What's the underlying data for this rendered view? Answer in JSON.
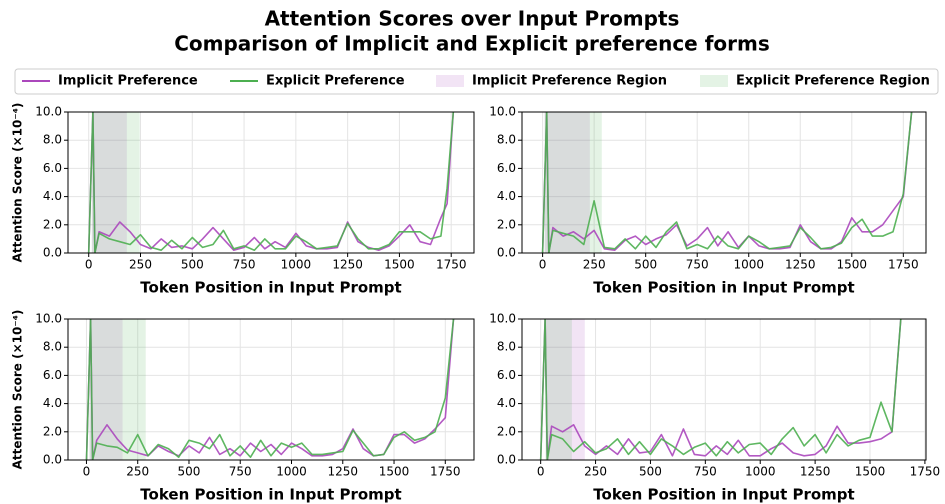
{
  "title": "Attention Scores over Input Prompts",
  "subtitle": "Comparison of Implicit and Explicit preference forms",
  "chart_data": [
    {
      "type": "line",
      "xlabel": "Token Position in Input Prompt",
      "ylabel": "Attention Score (×10⁻⁴)",
      "x": [
        0,
        20,
        30,
        50,
        100,
        150,
        200,
        250,
        300,
        350,
        400,
        450,
        500,
        550,
        600,
        650,
        700,
        750,
        800,
        850,
        900,
        950,
        1000,
        1050,
        1100,
        1150,
        1200,
        1250,
        1300,
        1350,
        1400,
        1450,
        1500,
        1550,
        1600,
        1650,
        1700,
        1730,
        1760
      ],
      "series": [
        {
          "name": "Implicit Preference",
          "color": "#ab47bc",
          "values": [
            0,
            10,
            0,
            1.5,
            1.2,
            2.2,
            1.5,
            0.6,
            0.3,
            1.0,
            0.4,
            0.5,
            0.3,
            1.0,
            1.8,
            1.0,
            0.2,
            0.4,
            1.1,
            0.3,
            0.8,
            0.4,
            1.4,
            0.5,
            0.3,
            0.3,
            0.4,
            2.2,
            0.8,
            0.4,
            0.2,
            0.5,
            1.2,
            2.0,
            0.8,
            0.6,
            2.5,
            3.5,
            10
          ]
        },
        {
          "name": "Explicit Preference",
          "color": "#4caf50",
          "values": [
            0,
            10,
            0,
            1.4,
            1.0,
            0.8,
            0.6,
            1.3,
            0.4,
            0.2,
            0.9,
            0.3,
            1.1,
            0.4,
            0.6,
            1.6,
            0.3,
            0.5,
            0.2,
            1.0,
            0.3,
            0.3,
            1.2,
            0.8,
            0.3,
            0.4,
            0.5,
            2.1,
            1.0,
            0.3,
            0.3,
            0.6,
            1.5,
            1.5,
            1.5,
            1.0,
            1.2,
            4.6,
            10
          ]
        }
      ],
      "regions": [
        {
          "name": "Implicit Preference Region",
          "color": "#ab47bc",
          "range": [
            15,
            184
          ]
        },
        {
          "name": "Explicit Preference Region",
          "color": "#4caf50",
          "range": [
            15,
            246
          ]
        }
      ],
      "xlim": [
        -100,
        1860
      ],
      "xticks": [
        0,
        250,
        500,
        750,
        1000,
        1250,
        1500,
        1750
      ],
      "ylim": [
        0,
        10
      ],
      "yticks": [
        {
          "value": 0,
          "label": "0.0"
        },
        {
          "value": 2,
          "label": "2.0"
        },
        {
          "value": 4,
          "label": "4.0"
        },
        {
          "value": 6,
          "label": "6.0"
        },
        {
          "value": 8,
          "label": "8.0"
        },
        {
          "value": 10,
          "label": "10.0"
        }
      ],
      "grid": true
    },
    {
      "type": "line",
      "xlabel": "Token Position in Input Prompt",
      "x": [
        0,
        20,
        30,
        50,
        100,
        150,
        200,
        250,
        300,
        350,
        400,
        450,
        500,
        550,
        600,
        650,
        700,
        750,
        800,
        850,
        900,
        950,
        1000,
        1050,
        1100,
        1150,
        1200,
        1250,
        1300,
        1350,
        1400,
        1450,
        1500,
        1550,
        1600,
        1650,
        1700,
        1750,
        1790
      ],
      "series": [
        {
          "name": "Implicit Preference",
          "color": "#ab47bc",
          "values": [
            0,
            10,
            0,
            1.8,
            1.2,
            1.5,
            1.0,
            1.6,
            0.3,
            0.2,
            0.9,
            1.2,
            0.6,
            1.0,
            1.3,
            2.0,
            0.5,
            1.0,
            1.8,
            0.5,
            1.5,
            0.4,
            1.2,
            0.5,
            0.3,
            0.3,
            0.4,
            2.0,
            0.8,
            0.3,
            0.3,
            0.8,
            2.5,
            1.5,
            1.5,
            2.0,
            3.0,
            4.0,
            10
          ]
        },
        {
          "name": "Explicit Preference",
          "color": "#4caf50",
          "values": [
            0,
            10,
            0,
            1.6,
            1.4,
            1.2,
            0.6,
            3.7,
            0.4,
            0.3,
            1.0,
            0.3,
            1.2,
            0.4,
            1.5,
            2.2,
            0.3,
            0.6,
            0.3,
            1.2,
            0.5,
            0.3,
            1.2,
            0.8,
            0.3,
            0.4,
            0.5,
            1.8,
            1.1,
            0.3,
            0.4,
            0.7,
            1.8,
            2.4,
            1.2,
            1.2,
            1.5,
            4.2,
            10
          ]
        }
      ],
      "regions": [
        {
          "name": "Implicit Preference Region",
          "color": "#ab47bc",
          "range": [
            10,
            229
          ]
        },
        {
          "name": "Explicit Preference Region",
          "color": "#4caf50",
          "range": [
            10,
            287
          ]
        }
      ],
      "xlim": [
        -100,
        1860
      ],
      "xticks": [
        0,
        250,
        500,
        750,
        1000,
        1250,
        1500,
        1750
      ],
      "ylim": [
        0,
        10
      ],
      "yticks": [
        {
          "value": 0,
          "label": "0.0"
        },
        {
          "value": 2,
          "label": "2.0"
        },
        {
          "value": 4,
          "label": "4.0"
        },
        {
          "value": 6,
          "label": "6.0"
        },
        {
          "value": 8,
          "label": "8.0"
        },
        {
          "value": 10,
          "label": "10.0"
        }
      ],
      "grid": true
    },
    {
      "type": "line",
      "xlabel": "Token Position in Input Prompt",
      "ylabel": "Attention Score (×10⁻⁴)",
      "x": [
        0,
        20,
        30,
        50,
        100,
        150,
        200,
        250,
        300,
        350,
        400,
        450,
        500,
        550,
        600,
        650,
        700,
        750,
        800,
        850,
        900,
        950,
        1000,
        1050,
        1100,
        1150,
        1200,
        1250,
        1300,
        1350,
        1400,
        1450,
        1500,
        1550,
        1600,
        1650,
        1700,
        1750,
        1790
      ],
      "series": [
        {
          "name": "Implicit Preference",
          "color": "#ab47bc",
          "values": [
            0,
            10,
            0,
            1.4,
            2.5,
            1.5,
            0.7,
            0.5,
            0.3,
            1.0,
            0.6,
            0.3,
            1.0,
            0.5,
            1.6,
            0.4,
            0.8,
            0.3,
            1.2,
            0.6,
            1.1,
            0.4,
            1.2,
            0.8,
            0.3,
            0.3,
            0.4,
            0.8,
            2.2,
            0.8,
            0.3,
            0.4,
            1.8,
            1.8,
            1.2,
            1.5,
            2.2,
            3.0,
            10
          ]
        },
        {
          "name": "Explicit Preference",
          "color": "#4caf50",
          "values": [
            0,
            10,
            0,
            1.2,
            1.0,
            0.9,
            0.5,
            1.8,
            0.3,
            1.1,
            0.8,
            0.2,
            1.4,
            1.2,
            0.8,
            1.8,
            0.3,
            1.0,
            0.2,
            1.4,
            0.3,
            1.2,
            0.9,
            1.2,
            0.4,
            0.4,
            0.5,
            0.6,
            2.1,
            1.2,
            0.3,
            0.4,
            1.6,
            2.0,
            1.4,
            1.6,
            2.0,
            4.4,
            10
          ]
        }
      ],
      "regions": [
        {
          "name": "Implicit Preference Region",
          "color": "#ab47bc",
          "range": [
            15,
            176
          ]
        },
        {
          "name": "Explicit Preference Region",
          "color": "#4caf50",
          "range": [
            15,
            289
          ]
        }
      ],
      "xlim": [
        -90,
        1890
      ],
      "xticks": [
        0,
        250,
        500,
        750,
        1000,
        1250,
        1500,
        1750
      ],
      "ylim": [
        0,
        10
      ],
      "yticks": [
        {
          "value": 0,
          "label": "0.0"
        },
        {
          "value": 2,
          "label": "2.0"
        },
        {
          "value": 4,
          "label": "4.0"
        },
        {
          "value": 6,
          "label": "6.0"
        },
        {
          "value": 8,
          "label": "8.0"
        },
        {
          "value": 10,
          "label": "10.0"
        }
      ],
      "grid": true
    },
    {
      "type": "line",
      "xlabel": "Token Position in Input Prompt",
      "x": [
        0,
        20,
        30,
        50,
        100,
        150,
        200,
        250,
        300,
        350,
        400,
        450,
        500,
        550,
        600,
        650,
        700,
        750,
        800,
        850,
        900,
        950,
        1000,
        1050,
        1100,
        1150,
        1200,
        1250,
        1300,
        1350,
        1400,
        1450,
        1500,
        1550,
        1600,
        1640
      ],
      "series": [
        {
          "name": "Implicit Preference",
          "color": "#ab47bc",
          "values": [
            0,
            10,
            0,
            2.4,
            2.0,
            2.5,
            1.0,
            0.4,
            1.0,
            0.4,
            1.5,
            0.5,
            0.6,
            1.8,
            0.3,
            2.2,
            0.4,
            0.3,
            1.0,
            0.4,
            1.4,
            0.3,
            0.3,
            0.8,
            1.2,
            0.5,
            0.3,
            0.4,
            1.0,
            2.4,
            1.2,
            1.2,
            1.3,
            1.5,
            2.0,
            10
          ]
        },
        {
          "name": "Explicit Preference",
          "color": "#4caf50",
          "values": [
            0,
            10,
            0,
            1.8,
            1.5,
            0.6,
            1.3,
            0.5,
            0.8,
            1.5,
            0.4,
            1.3,
            0.4,
            1.5,
            1.0,
            0.4,
            0.9,
            1.2,
            0.3,
            1.3,
            0.5,
            1.1,
            1.2,
            0.4,
            1.5,
            2.3,
            1.0,
            1.8,
            0.5,
            1.8,
            1.0,
            1.4,
            1.6,
            4.1,
            2.0,
            10
          ]
        }
      ],
      "regions": [
        {
          "name": "Implicit Preference Region",
          "color": "#ab47bc",
          "range": [
            23,
            201
          ]
        },
        {
          "name": "Explicit Preference Region",
          "color": "#4caf50",
          "range": [
            23,
            142
          ]
        }
      ],
      "xlim": [
        -85,
        1755
      ],
      "xticks": [
        0,
        250,
        500,
        750,
        1000,
        1250,
        1500,
        1750
      ],
      "ylim": [
        0,
        10
      ],
      "yticks": [
        {
          "value": 0,
          "label": "0.0"
        },
        {
          "value": 2,
          "label": "2.0"
        },
        {
          "value": 4,
          "label": "4.0"
        },
        {
          "value": 6,
          "label": "6.0"
        },
        {
          "value": 8,
          "label": "8.0"
        },
        {
          "value": 10,
          "label": "10.0"
        }
      ],
      "grid": true
    }
  ]
}
